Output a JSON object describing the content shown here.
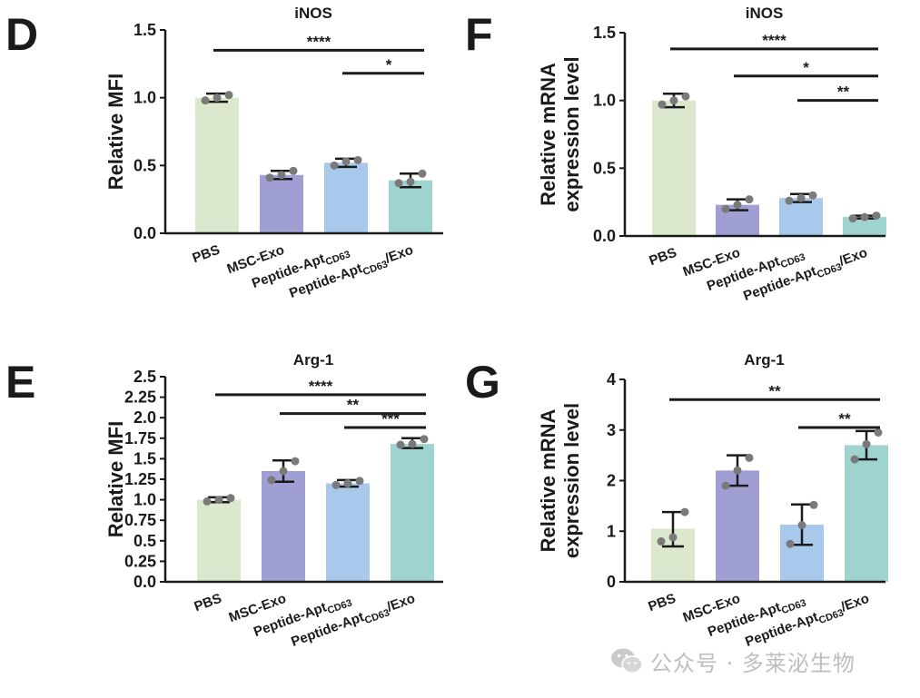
{
  "chart_data": [
    {
      "panel": "D",
      "type": "bar",
      "title": "iNOS",
      "ylabel": "Relative MFI",
      "categories": [
        "PBS",
        "MSC-Exo",
        "Peptide-AptCD63",
        "Peptide-AptCD63/Exo"
      ],
      "category_labels": [
        {
          "main": "PBS",
          "sub": "",
          "tail": ""
        },
        {
          "main": "MSC-Exo",
          "sub": "",
          "tail": ""
        },
        {
          "main": "Peptide-Apt",
          "sub": "CD63",
          "tail": ""
        },
        {
          "main": "Peptide-Apt",
          "sub": "CD63",
          "tail": "/Exo"
        }
      ],
      "values": [
        1.0,
        0.43,
        0.52,
        0.39
      ],
      "errors": [
        [
          0.97,
          1.03
        ],
        [
          0.4,
          0.46
        ],
        [
          0.49,
          0.55
        ],
        [
          0.34,
          0.44
        ]
      ],
      "points": [
        [
          0.98,
          1.0,
          1.02
        ],
        [
          0.41,
          0.43,
          0.46
        ],
        [
          0.5,
          0.53,
          0.54
        ],
        [
          0.37,
          0.38,
          0.44
        ]
      ],
      "ylim": [
        0,
        1.5
      ],
      "yticks": [
        "0.0",
        "0.5",
        "1.0",
        "1.5"
      ],
      "significance": [
        {
          "from": 0,
          "to": 3,
          "label": "****",
          "y": 1.35
        },
        {
          "from": 2,
          "to": 3,
          "label": "*",
          "y": 1.18
        }
      ]
    },
    {
      "panel": "E",
      "type": "bar",
      "title": "Arg-1",
      "ylabel": "Relative MFI",
      "categories": [
        "PBS",
        "MSC-Exo",
        "Peptide-AptCD63",
        "Peptide-AptCD63/Exo"
      ],
      "category_labels": [
        {
          "main": "PBS",
          "sub": "",
          "tail": ""
        },
        {
          "main": "MSC-Exo",
          "sub": "",
          "tail": ""
        },
        {
          "main": "Peptide-Apt",
          "sub": "CD63",
          "tail": ""
        },
        {
          "main": "Peptide-Apt",
          "sub": "CD63",
          "tail": "/Exo"
        }
      ],
      "values": [
        1.0,
        1.35,
        1.2,
        1.68
      ],
      "errors": [
        [
          0.97,
          1.03
        ],
        [
          1.22,
          1.48
        ],
        [
          1.16,
          1.24
        ],
        [
          1.63,
          1.75
        ]
      ],
      "points": [
        [
          0.98,
          1.0,
          1.02
        ],
        [
          1.24,
          1.35,
          1.47
        ],
        [
          1.18,
          1.2,
          1.23
        ],
        [
          1.67,
          1.68,
          1.74
        ]
      ],
      "ylim": [
        0,
        2.5
      ],
      "yticks": [
        "0.0",
        "0.25",
        "0.5",
        "0.75",
        "1.0",
        "1.25",
        "1.5",
        "1.75",
        "2.0",
        "2.25",
        "2.5"
      ],
      "significance": [
        {
          "from": 0,
          "to": 3,
          "label": "****",
          "y": 2.28
        },
        {
          "from": 1,
          "to": 3,
          "label": "**",
          "y": 2.05
        },
        {
          "from": 2,
          "to": 3,
          "label": "***",
          "y": 1.88
        }
      ]
    },
    {
      "panel": "F",
      "type": "bar",
      "title": "iNOS",
      "ylabel": [
        "Relative mRNA",
        "expression level"
      ],
      "categories": [
        "PBS",
        "MSC-Exo",
        "Peptide-AptCD63",
        "Peptide-AptCD63/Exo"
      ],
      "category_labels": [
        {
          "main": "PBS",
          "sub": "",
          "tail": ""
        },
        {
          "main": "MSC-Exo",
          "sub": "",
          "tail": ""
        },
        {
          "main": "Peptide-Apt",
          "sub": "CD63",
          "tail": ""
        },
        {
          "main": "Peptide-Apt",
          "sub": "CD63",
          "tail": "/Exo"
        }
      ],
      "values": [
        1.0,
        0.23,
        0.28,
        0.14
      ],
      "errors": [
        [
          0.95,
          1.05
        ],
        [
          0.19,
          0.27
        ],
        [
          0.25,
          0.31
        ],
        [
          0.13,
          0.15
        ]
      ],
      "points": [
        [
          0.97,
          1.0,
          1.03
        ],
        [
          0.2,
          0.23,
          0.27
        ],
        [
          0.26,
          0.28,
          0.3
        ],
        [
          0.13,
          0.14,
          0.15
        ]
      ],
      "ylim": [
        0,
        1.5
      ],
      "yticks": [
        "0.0",
        "0.5",
        "1.0",
        "1.5"
      ],
      "significance": [
        {
          "from": 0,
          "to": 3,
          "label": "****",
          "y": 1.38
        },
        {
          "from": 1,
          "to": 3,
          "label": "*",
          "y": 1.18
        },
        {
          "from": 2,
          "to": 3,
          "label": "**",
          "y": 1.0
        }
      ]
    },
    {
      "panel": "G",
      "type": "bar",
      "title": "Arg-1",
      "ylabel": [
        "Relative mRNA",
        "expression level"
      ],
      "categories": [
        "PBS",
        "MSC-Exo",
        "Peptide-AptCD63",
        "Peptide-AptCD63/Exo"
      ],
      "category_labels": [
        {
          "main": "PBS",
          "sub": "",
          "tail": ""
        },
        {
          "main": "MSC-Exo",
          "sub": "",
          "tail": ""
        },
        {
          "main": "Peptide-Apt",
          "sub": "CD63",
          "tail": ""
        },
        {
          "main": "Peptide-Apt",
          "sub": "CD63",
          "tail": "/Exo"
        }
      ],
      "values": [
        1.05,
        2.2,
        1.13,
        2.7
      ],
      "errors": [
        [
          0.7,
          1.38
        ],
        [
          1.9,
          2.5
        ],
        [
          0.73,
          1.53
        ],
        [
          2.42,
          2.98
        ]
      ],
      "points": [
        [
          0.8,
          0.88,
          1.38
        ],
        [
          1.9,
          2.2,
          2.45
        ],
        [
          0.75,
          1.12,
          1.52
        ],
        [
          2.42,
          2.72,
          2.95
        ]
      ],
      "ylim": [
        0,
        4
      ],
      "yticks": [
        "0",
        "1",
        "2",
        "3",
        "4"
      ],
      "significance": [
        {
          "from": 0,
          "to": 3,
          "label": "**",
          "y": 3.6
        },
        {
          "from": 2,
          "to": 3,
          "label": "**",
          "y": 3.05
        }
      ]
    }
  ],
  "colors": {
    "bars": [
      "#dbe8cd",
      "#9f9fd4",
      "#a8c8ec",
      "#9fd3d0"
    ],
    "axis": "#1a1a1a",
    "point": "#7a7a7a",
    "watermark_icon": "#a0a0a0"
  },
  "watermark": {
    "icon": "wechat-icon",
    "text": "公众号 · 多莱泌生物"
  }
}
